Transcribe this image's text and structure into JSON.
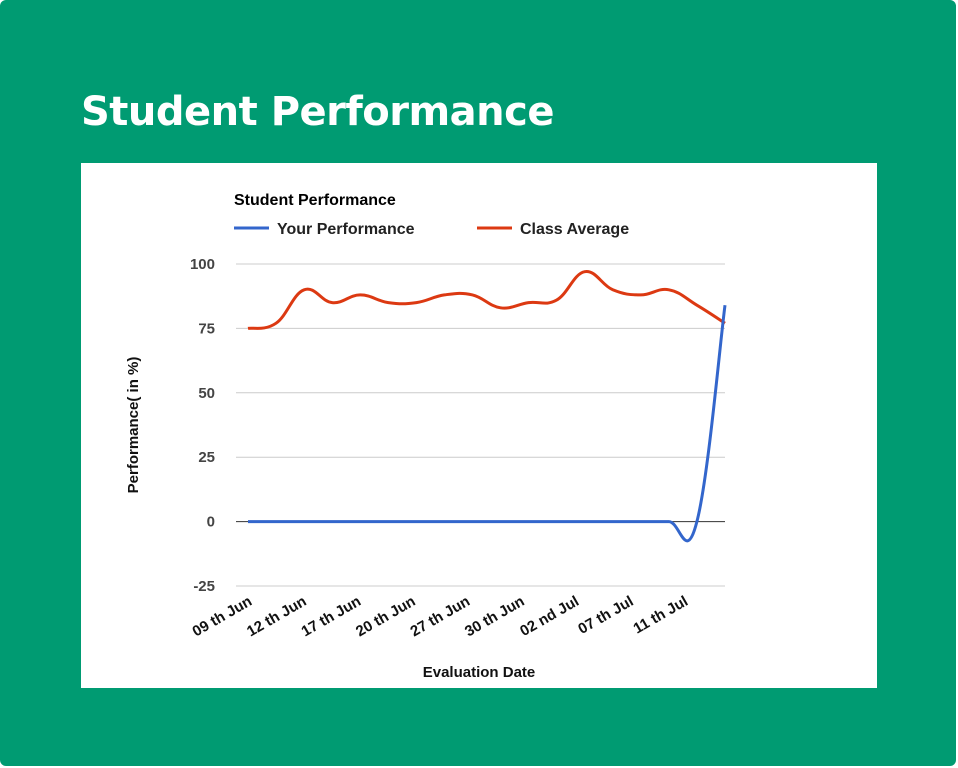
{
  "page": {
    "title": "Student Performance"
  },
  "colors": {
    "background": "#009b72",
    "panel": "#ffffff",
    "your_performance": "#3366cc",
    "class_average": "#dc3912"
  },
  "chart_data": {
    "type": "line",
    "title": "Student Performance",
    "xlabel": "Evaluation Date",
    "ylabel": "Performance( in %)",
    "ylim": [
      -25,
      100
    ],
    "yticks": [
      -25,
      0,
      25,
      50,
      75,
      100
    ],
    "grid": true,
    "legend_position": "top",
    "x_tick_labels": [
      "09 th Jun",
      "12 th Jun",
      "17 th Jun",
      "20 th Jun",
      "27 th Jun",
      "30 th Jun",
      "02 nd Jul",
      "07 th Jul",
      "11 th Jul"
    ],
    "series": [
      {
        "name": "Your Performance",
        "color": "#3366cc",
        "values": [
          0,
          0,
          0,
          0,
          0,
          0,
          0,
          0,
          0,
          0,
          0,
          0,
          0,
          0,
          0,
          0,
          0,
          84
        ]
      },
      {
        "name": "Class Average",
        "color": "#dc3912",
        "values": [
          75,
          77,
          90,
          85,
          88,
          85,
          85,
          88,
          88,
          83,
          85,
          86,
          97,
          90,
          88,
          90,
          84,
          77
        ]
      }
    ]
  }
}
